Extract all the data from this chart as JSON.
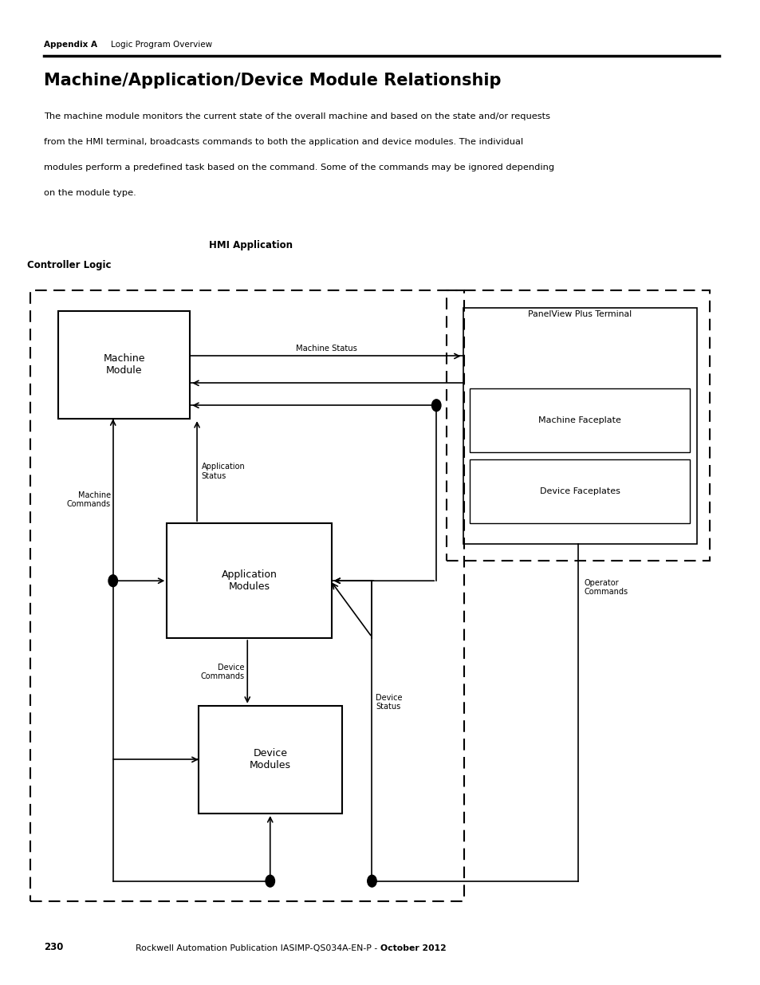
{
  "page_title_bold": "Appendix A",
  "page_title_normal": "Logic Program Overview",
  "section_title": "Machine/Application/Device Module Relationship",
  "body_text": "The machine module monitors the current state of the overall machine and based on the state and/or requests\nfrom the HMI terminal, broadcasts commands to both the application and device modules. The individual\nmodules perform a predefined task based on the command. Some of the commands may be ignored depending\non the module type.",
  "footer_plain": "Rockwell Automation Publication IASIMP-QS034A-EN-P - ",
  "footer_bold": "October 2012",
  "page_number": "230",
  "controller_logic_label": "Controller Logic",
  "hmi_application_label": "HMI Application",
  "bg_color": "#ffffff",
  "line_color": "#000000"
}
